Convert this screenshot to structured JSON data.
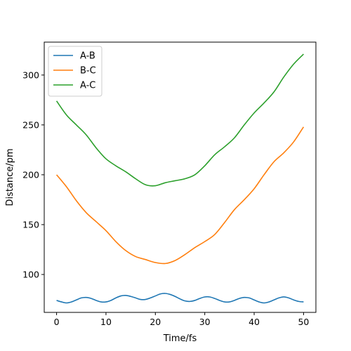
{
  "chart_data": {
    "type": "line",
    "title": "",
    "xlabel": "Time/fs",
    "ylabel": "Distance/pm",
    "xlim": [
      -2.5,
      52.5
    ],
    "ylim": [
      62,
      333
    ],
    "xticks": [
      0,
      10,
      20,
      30,
      40,
      50
    ],
    "yticks": [
      100,
      150,
      200,
      250,
      300
    ],
    "grid": false,
    "legend_position": "top-left",
    "series": [
      {
        "name": "A-B",
        "color": "#1f77b4",
        "x": [
          0,
          1,
          2,
          3,
          4,
          5,
          6,
          7,
          8,
          9,
          10,
          11,
          12,
          13,
          14,
          15,
          16,
          17,
          18,
          19,
          20,
          21,
          22,
          23,
          24,
          25,
          26,
          27,
          28,
          29,
          30,
          31,
          32,
          33,
          34,
          35,
          36,
          37,
          38,
          39,
          40,
          41,
          42,
          43,
          44,
          45,
          46,
          47,
          48,
          49,
          50
        ],
        "y": [
          74,
          72.5,
          71.5,
          72.5,
          74.5,
          76.5,
          77,
          76,
          74,
          72.5,
          72.5,
          74,
          76.5,
          78.5,
          79,
          78,
          76.5,
          75,
          75,
          76.5,
          78.5,
          80.5,
          81,
          80,
          78,
          75.5,
          73.5,
          73,
          74,
          76,
          77.5,
          77.5,
          76,
          74,
          72.5,
          72.5,
          74,
          76,
          77,
          76.5,
          74.5,
          72.5,
          71.5,
          72.5,
          74.5,
          76.5,
          77.5,
          76.5,
          74.5,
          73,
          72.5
        ]
      },
      {
        "name": "B-C",
        "color": "#ff7f0e",
        "x": [
          0,
          2,
          4,
          6,
          8,
          10,
          12,
          14,
          16,
          18,
          20,
          22,
          24,
          26,
          28,
          30,
          32,
          34,
          36,
          38,
          40,
          42,
          44,
          46,
          48,
          50
        ],
        "y": [
          200,
          188,
          174,
          162,
          153,
          144,
          133,
          124,
          118,
          115,
          112,
          111,
          114,
          120,
          127,
          133,
          140,
          152,
          165,
          175,
          186,
          200,
          213,
          222,
          233,
          248
        ]
      },
      {
        "name": "A-C",
        "color": "#2ca02c",
        "x": [
          0,
          2,
          4,
          6,
          8,
          10,
          12,
          14,
          16,
          18,
          20,
          22,
          24,
          26,
          28,
          30,
          32,
          34,
          36,
          38,
          40,
          42,
          44,
          46,
          48,
          50
        ],
        "y": [
          274,
          260,
          250,
          240,
          227,
          216,
          209,
          203,
          196,
          190,
          189,
          192,
          194,
          196,
          200,
          209,
          220,
          228,
          237,
          250,
          262,
          272,
          283,
          298,
          311,
          321
        ]
      }
    ]
  }
}
